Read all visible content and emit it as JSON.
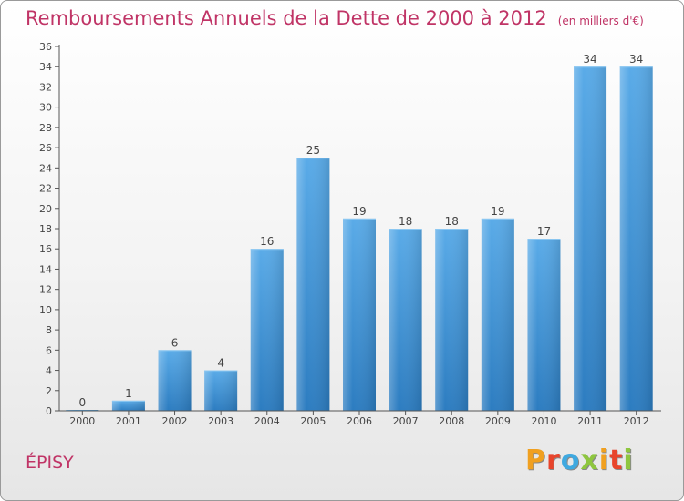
{
  "header": {
    "title": "Remboursements Annuels de la Dette de 2000 à 2012",
    "unit": "(en milliers d'€)"
  },
  "footer": {
    "place": "ÉPISY",
    "logo_text": "Proxiti",
    "logo_colors": [
      "#f0a020",
      "#e8452c",
      "#3fa9e0",
      "#8ec63f",
      "#f0a020",
      "#e8452c",
      "#8ec63f"
    ]
  },
  "colors": {
    "title": "#c03466",
    "bar": "#3f92d8",
    "axis": "#555555",
    "grid": "#cccccc"
  },
  "chart_data": {
    "type": "bar",
    "title": "Remboursements Annuels de la Dette de 2000 à 2012",
    "categories": [
      "2000",
      "2001",
      "2002",
      "2003",
      "2004",
      "2005",
      "2006",
      "2007",
      "2008",
      "2009",
      "2010",
      "2011",
      "2012"
    ],
    "values": [
      0,
      1,
      6,
      4,
      16,
      25,
      19,
      18,
      18,
      19,
      17,
      34,
      34
    ],
    "data_labels": [
      "0",
      "1",
      "6",
      "4",
      "16",
      "25",
      "19",
      "18",
      "18",
      "19",
      "17",
      "34",
      "34"
    ],
    "ylim": [
      0,
      36
    ],
    "yticks": [
      "0",
      "2",
      "4",
      "6",
      "8",
      "10",
      "12",
      "14",
      "16",
      "18",
      "20",
      "22",
      "24",
      "26",
      "28",
      "30",
      "32",
      "34",
      "36"
    ],
    "xlabel": "",
    "ylabel": "",
    "grid": false,
    "legend": "none"
  }
}
